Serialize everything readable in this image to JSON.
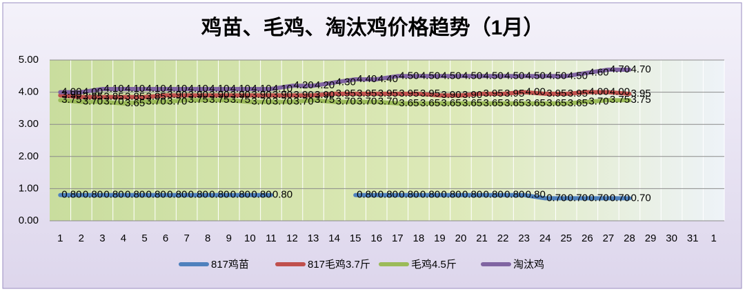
{
  "chart_data": {
    "type": "line",
    "title": "鸡苗、毛鸡、淘汰鸡价格趋势（1月）",
    "categories": [
      "1",
      "2",
      "3",
      "4",
      "5",
      "6",
      "7",
      "8",
      "9",
      "10",
      "11",
      "12",
      "13",
      "14",
      "15",
      "16",
      "17",
      "18",
      "19",
      "20",
      "21",
      "22",
      "23",
      "24",
      "25",
      "26",
      "27",
      "28",
      "29",
      "30",
      "31",
      "1"
    ],
    "ylim": [
      0,
      5
    ],
    "yticks": [
      {
        "value": 0,
        "label": "0.00"
      },
      {
        "value": 1,
        "label": "1.00"
      },
      {
        "value": 2,
        "label": "2.00"
      },
      {
        "value": 3,
        "label": "3.00"
      },
      {
        "value": 4,
        "label": "4.00"
      },
      {
        "value": 5,
        "label": "5.00"
      }
    ],
    "grid": true,
    "series": [
      {
        "name": "817鸡苗",
        "color": "#4f81bd",
        "values": [
          0.8,
          0.8,
          0.8,
          0.8,
          0.8,
          0.8,
          0.8,
          0.8,
          0.8,
          0.8,
          0.8,
          null,
          null,
          null,
          0.8,
          0.8,
          0.8,
          0.8,
          0.8,
          0.8,
          0.8,
          0.8,
          0.8,
          0.7,
          0.7,
          0.7,
          0.7,
          0.7,
          null,
          null,
          null,
          null
        ],
        "value_labels": [
          "0.80",
          "0.80",
          "0.80",
          "0.80",
          "0.80",
          "0.80",
          "0.80",
          "0.80",
          "0.80",
          "0.80",
          "0.80",
          null,
          null,
          null,
          "0.80",
          "0.80",
          "0.80",
          "0.80",
          "0.80",
          "0.80",
          "0.80",
          "0.80",
          "0.80",
          "0.70",
          "0.70",
          "0.70",
          "0.70",
          "0.70",
          null,
          null,
          null,
          null
        ]
      },
      {
        "name": "817毛鸡3.7斤",
        "color": "#c0504d",
        "values": [
          3.9,
          3.85,
          3.85,
          3.85,
          3.85,
          3.9,
          3.9,
          3.9,
          3.9,
          3.9,
          3.9,
          3.9,
          3.9,
          3.95,
          3.95,
          3.95,
          3.95,
          3.95,
          3.9,
          3.9,
          3.95,
          3.95,
          4,
          3.95,
          3.95,
          4,
          4,
          3.95,
          null,
          null,
          null,
          null
        ],
        "value_labels": [
          "3.90",
          "3.85",
          "3.85",
          "3.85",
          "3.85",
          "3.90",
          "3.90",
          "3.90",
          "3.90",
          "3.90",
          "3.90",
          "3.90",
          "3.90",
          "3.95",
          "3.95",
          "3.95",
          "3.95",
          "3.95",
          "3.90",
          "3.90",
          "3.95",
          "3.95",
          "4.00",
          "3.95",
          "3.95",
          "4.00",
          "4.00",
          "3.95",
          null,
          null,
          null,
          null
        ]
      },
      {
        "name": "毛鸡4.5斤",
        "color": "#9bbb59",
        "values": [
          3.75,
          3.7,
          3.7,
          3.65,
          3.7,
          3.7,
          3.75,
          3.75,
          3.75,
          3.7,
          3.7,
          3.7,
          3.75,
          3.7,
          3.7,
          3.7,
          3.65,
          3.65,
          3.65,
          3.65,
          3.65,
          3.65,
          3.65,
          3.65,
          3.65,
          3.7,
          3.75,
          3.75,
          null,
          null,
          null,
          null
        ],
        "value_labels": [
          "3.75",
          "3.70",
          "3.70",
          "3.65",
          "3.70",
          "3.70",
          "3.75",
          "3.75",
          "3.75",
          "3.70",
          "3.70",
          "3.70",
          "3.75",
          "3.70",
          "3.70",
          "3.70",
          "3.65",
          "3.65",
          "3.65",
          "3.65",
          "3.65",
          "3.65",
          "3.65",
          "3.65",
          "3.65",
          "3.70",
          "3.75",
          "3.75",
          null,
          null,
          null,
          null
        ]
      },
      {
        "name": "淘汰鸡",
        "color": "#8064a2",
        "values": [
          4,
          4,
          4.1,
          4.1,
          4.1,
          4.1,
          4.1,
          4.1,
          4.1,
          4.1,
          4.1,
          4.2,
          4.2,
          4.3,
          4.4,
          4.4,
          4.5,
          4.5,
          4.5,
          4.5,
          4.5,
          4.5,
          4.5,
          4.5,
          4.5,
          4.6,
          4.7,
          4.7,
          null,
          null,
          null,
          null
        ],
        "value_labels": [
          "4.00",
          "4.00",
          "4.10",
          "4.10",
          "4.10",
          "4.10",
          "4.10",
          "4.10",
          "4.10",
          "4.10",
          "4.10",
          "4.20",
          "4.20",
          "4.30",
          "4.40",
          "4.40",
          "4.50",
          "4.50",
          "4.50",
          "4.50",
          "4.50",
          "4.50",
          "4.50",
          "4.50",
          "4.50",
          "4.60",
          "4.70",
          "4.70",
          null,
          null,
          null,
          null
        ]
      }
    ]
  }
}
